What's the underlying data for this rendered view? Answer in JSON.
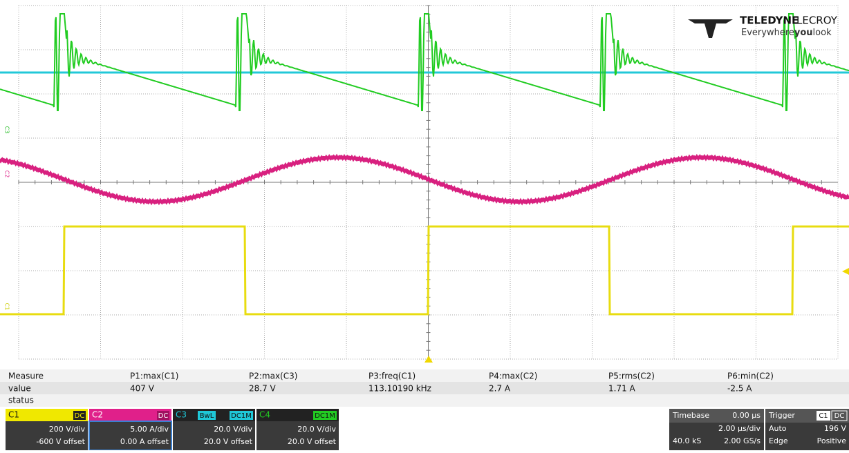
{
  "logo": {
    "brand_bold": "TELEDYNE",
    "brand_light": "LECROY",
    "tagline_1": "Everywhere",
    "tagline_2": "you",
    "tagline_3": "look"
  },
  "trace_labels": [
    "C3",
    "C2",
    "C1"
  ],
  "measure": {
    "header": [
      "Measure",
      "P1:max(C1)",
      "P2:max(C3)",
      "P3:freq(C1)",
      "P4:max(C2)",
      "P5:rms(C2)",
      "P6:min(C2)"
    ],
    "values": [
      "value",
      "407 V",
      "28.7 V",
      "113.10190 kHz",
      "2.7 A",
      "1.71 A",
      "-2.5 A"
    ],
    "status": "status"
  },
  "channels": [
    {
      "name": "C1",
      "coupling": "DC",
      "scale": "200 V/div",
      "offset": "-600 V offset"
    },
    {
      "name": "C2",
      "coupling": "DC",
      "scale": "5.00 A/div",
      "offset": "0.00 A offset"
    },
    {
      "name": "C3",
      "bandwidth": "BwL",
      "coupling": "DC1M",
      "scale": "20.0 V/div",
      "offset": "20.0 V offset"
    },
    {
      "name": "C4",
      "coupling": "DC1M",
      "scale": "20.0 V/div",
      "offset": "20.0 V offset"
    }
  ],
  "timebase": {
    "label": "Timebase",
    "delay": "0.00 µs",
    "scale": "2.00 µs/div",
    "samples": "40.0 kS",
    "rate": "2.00 GS/s"
  },
  "trigger": {
    "label": "Trigger",
    "source": "C1",
    "coupling": "DC",
    "mode": "Auto",
    "level": "196 V",
    "type": "Edge",
    "slope": "Positive"
  }
}
